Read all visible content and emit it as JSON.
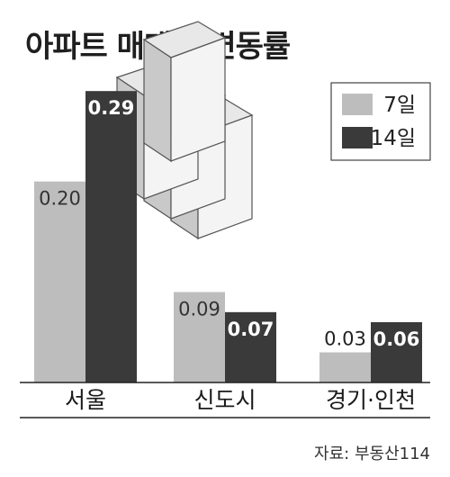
{
  "chart_data": {
    "type": "bar",
    "title": "아파트 매매가 변동률",
    "categories": [
      "서울",
      "신도시",
      "경기·인천"
    ],
    "series": [
      {
        "name": "7일",
        "values": [
          0.2,
          0.09,
          0.03
        ],
        "color": "#bdbdbd",
        "label_color": "#333333"
      },
      {
        "name": "14일",
        "values": [
          0.29,
          0.07,
          0.06
        ],
        "color": "#3a3a3a",
        "label_color": "#ffffff"
      }
    ],
    "value_labels": [
      [
        "0.20",
        "0.09",
        "0.03"
      ],
      [
        "0.29",
        "0.07",
        "0.06"
      ]
    ],
    "ylim": [
      0,
      0.3
    ],
    "xlabel": "",
    "ylabel": "",
    "grid": false,
    "legend_position": "top-right",
    "decoration": "apartment-buildings-icon",
    "source": "자료: 부동산114"
  }
}
